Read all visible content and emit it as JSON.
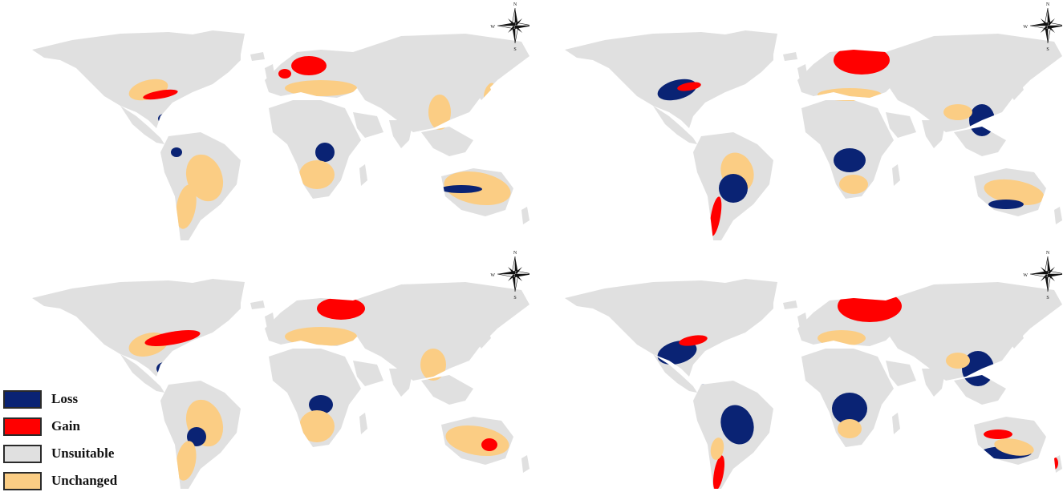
{
  "legend": [
    {
      "key": "loss",
      "label": "Loss",
      "color": "#0a2374"
    },
    {
      "key": "gain",
      "label": "Gain",
      "color": "#ff0000"
    },
    {
      "key": "unsuitable",
      "label": "Unsuitable",
      "color": "#e0e0e0"
    },
    {
      "key": "unchanged",
      "label": "Unchanged",
      "color": "#fbcd84"
    }
  ],
  "compass": {
    "n": "N",
    "s": "S",
    "e": "E",
    "w": "W"
  },
  "maps": [
    {
      "name": "map-top-left"
    },
    {
      "name": "map-top-right"
    },
    {
      "name": "map-bottom-left"
    },
    {
      "name": "map-bottom-right"
    }
  ]
}
